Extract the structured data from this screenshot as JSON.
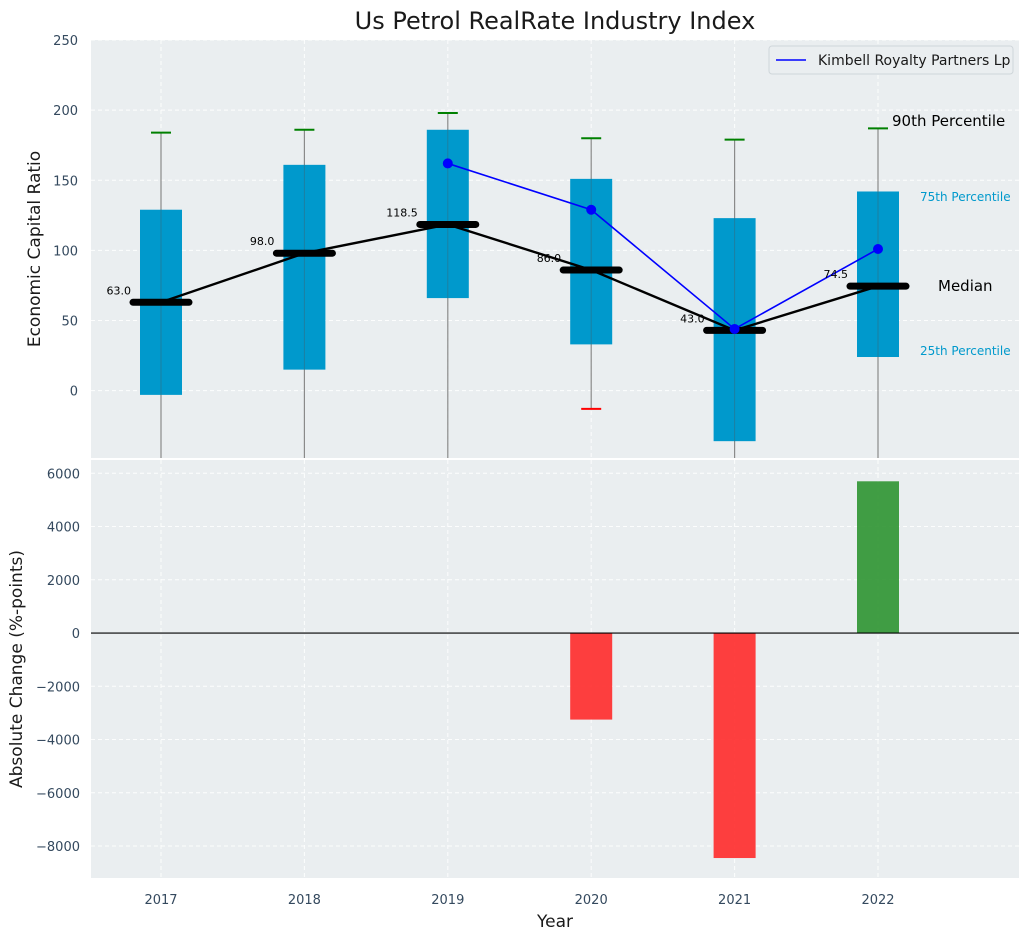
{
  "chart_data": [
    {
      "type": "box",
      "title": "Us Petrol RealRate Industry Index",
      "ylabel": "Economic Capital Ratio",
      "ylim": [
        -48,
        250
      ],
      "yticks": [
        0,
        50,
        100,
        150,
        200,
        250
      ],
      "categories": [
        "2017",
        "2018",
        "2019",
        "2020",
        "2021",
        "2022"
      ],
      "p25": [
        -3,
        15,
        66,
        33,
        -36,
        24
      ],
      "p75": [
        129,
        161,
        186,
        151,
        123,
        142
      ],
      "median": [
        63.0,
        98.0,
        118.5,
        86.0,
        43.0,
        74.5
      ],
      "median_labels": [
        "63.0",
        "98.0",
        "118.5",
        "86.0",
        "43.0",
        "74.5"
      ],
      "p90": [
        184,
        186,
        198,
        180,
        179,
        187
      ],
      "p10": [
        null,
        null,
        null,
        -13,
        null,
        null
      ],
      "company_series": {
        "name": "Kimbell Royalty Partners Lp",
        "x": [
          "2019",
          "2020",
          "2021",
          "2022"
        ],
        "values": [
          162,
          129,
          44,
          101
        ]
      },
      "percentile_labels": {
        "p90": "90th Percentile",
        "p75": "75th Percentile",
        "median": "Median",
        "p25": "25th Percentile"
      },
      "legend_position": "top-right",
      "grid": true
    },
    {
      "type": "bar",
      "ylabel": "Absolute Change (%-points)",
      "xlabel": "Year",
      "categories": [
        "2017",
        "2018",
        "2019",
        "2020",
        "2021",
        "2022"
      ],
      "values": [
        null,
        null,
        null,
        -3250,
        -8450,
        5700
      ],
      "ylim": [
        -9200,
        6500
      ],
      "yticks": [
        -8000,
        -6000,
        -4000,
        -2000,
        0,
        2000,
        4000,
        6000
      ],
      "ytick_labels": [
        "−8000",
        "−6000",
        "−4000",
        "−2000",
        "0",
        "2000",
        "4000",
        "6000"
      ],
      "grid": true
    }
  ],
  "colors": {
    "box": "#0099cc",
    "median": "#000000",
    "company": "#0000ff",
    "positive": "#2e9431",
    "negative": "#ff2a2a",
    "whisker_high": "#008000",
    "whisker_low": "#ff0000",
    "panel": "#eaeef0"
  }
}
